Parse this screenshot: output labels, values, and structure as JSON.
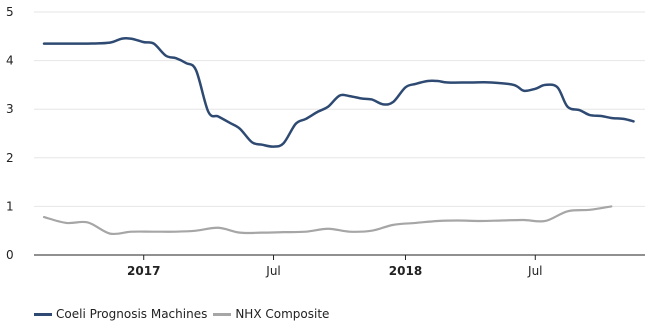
{
  "chart_data": {
    "type": "line",
    "ylim": [
      0,
      5
    ],
    "y_ticks": [
      0,
      1,
      2,
      3,
      4,
      5
    ],
    "x_range": [
      "2016-08-01",
      "2018-12-01"
    ],
    "x_ticks": [
      {
        "date": "2017-01-01",
        "label": "2017",
        "bold": true
      },
      {
        "date": "2017-07-01",
        "label": "Jul",
        "bold": false
      },
      {
        "date": "2018-01-01",
        "label": "2018",
        "bold": true
      },
      {
        "date": "2018-07-01",
        "label": "Jul",
        "bold": false
      }
    ],
    "grid": "horizontal",
    "legend_position": "bottom-left",
    "series": [
      {
        "name": "Coeli Prognosis Machines",
        "color": "#2e4a72",
        "points": [
          [
            "2016-08-15",
            4.35
          ],
          [
            "2016-09-15",
            4.35
          ],
          [
            "2016-10-15",
            4.35
          ],
          [
            "2016-11-15",
            4.37
          ],
          [
            "2016-12-01",
            4.45
          ],
          [
            "2016-12-15",
            4.45
          ],
          [
            "2017-01-01",
            4.38
          ],
          [
            "2017-01-15",
            4.35
          ],
          [
            "2017-02-01",
            4.1
          ],
          [
            "2017-02-15",
            4.05
          ],
          [
            "2017-03-01",
            3.95
          ],
          [
            "2017-03-15",
            3.8
          ],
          [
            "2017-04-01",
            2.95
          ],
          [
            "2017-04-15",
            2.85
          ],
          [
            "2017-05-01",
            2.72
          ],
          [
            "2017-05-15",
            2.6
          ],
          [
            "2017-06-01",
            2.32
          ],
          [
            "2017-06-15",
            2.27
          ],
          [
            "2017-07-01",
            2.23
          ],
          [
            "2017-07-15",
            2.3
          ],
          [
            "2017-08-01",
            2.7
          ],
          [
            "2017-08-15",
            2.8
          ],
          [
            "2017-09-01",
            2.95
          ],
          [
            "2017-09-15",
            3.05
          ],
          [
            "2017-10-01",
            3.28
          ],
          [
            "2017-10-15",
            3.27
          ],
          [
            "2017-11-01",
            3.22
          ],
          [
            "2017-11-15",
            3.2
          ],
          [
            "2017-12-01",
            3.1
          ],
          [
            "2017-12-15",
            3.15
          ],
          [
            "2018-01-01",
            3.45
          ],
          [
            "2018-01-15",
            3.52
          ],
          [
            "2018-02-01",
            3.58
          ],
          [
            "2018-02-15",
            3.58
          ],
          [
            "2018-03-01",
            3.55
          ],
          [
            "2018-04-01",
            3.55
          ],
          [
            "2018-05-01",
            3.55
          ],
          [
            "2018-06-01",
            3.5
          ],
          [
            "2018-06-15",
            3.38
          ],
          [
            "2018-07-01",
            3.42
          ],
          [
            "2018-07-15",
            3.5
          ],
          [
            "2018-08-01",
            3.45
          ],
          [
            "2018-08-15",
            3.05
          ],
          [
            "2018-09-01",
            2.98
          ],
          [
            "2018-09-15",
            2.88
          ],
          [
            "2018-10-01",
            2.86
          ],
          [
            "2018-10-15",
            2.82
          ],
          [
            "2018-11-01",
            2.8
          ],
          [
            "2018-11-15",
            2.75
          ]
        ]
      },
      {
        "name": "NHX Composite",
        "color": "#a6a6a6",
        "points": [
          [
            "2016-08-15",
            0.78
          ],
          [
            "2016-09-15",
            0.66
          ],
          [
            "2016-10-15",
            0.67
          ],
          [
            "2016-11-15",
            0.44
          ],
          [
            "2016-12-15",
            0.48
          ],
          [
            "2017-01-15",
            0.48
          ],
          [
            "2017-02-15",
            0.48
          ],
          [
            "2017-03-15",
            0.5
          ],
          [
            "2017-04-15",
            0.56
          ],
          [
            "2017-05-15",
            0.46
          ],
          [
            "2017-06-15",
            0.46
          ],
          [
            "2017-07-15",
            0.47
          ],
          [
            "2017-08-15",
            0.48
          ],
          [
            "2017-09-15",
            0.54
          ],
          [
            "2017-10-15",
            0.48
          ],
          [
            "2017-11-15",
            0.5
          ],
          [
            "2017-12-15",
            0.62
          ],
          [
            "2018-01-15",
            0.66
          ],
          [
            "2018-02-15",
            0.7
          ],
          [
            "2018-03-15",
            0.71
          ],
          [
            "2018-04-15",
            0.7
          ],
          [
            "2018-05-15",
            0.71
          ],
          [
            "2018-06-15",
            0.72
          ],
          [
            "2018-07-15",
            0.7
          ],
          [
            "2018-08-15",
            0.9
          ],
          [
            "2018-09-15",
            0.93
          ],
          [
            "2018-10-15",
            1.0
          ]
        ]
      }
    ]
  }
}
